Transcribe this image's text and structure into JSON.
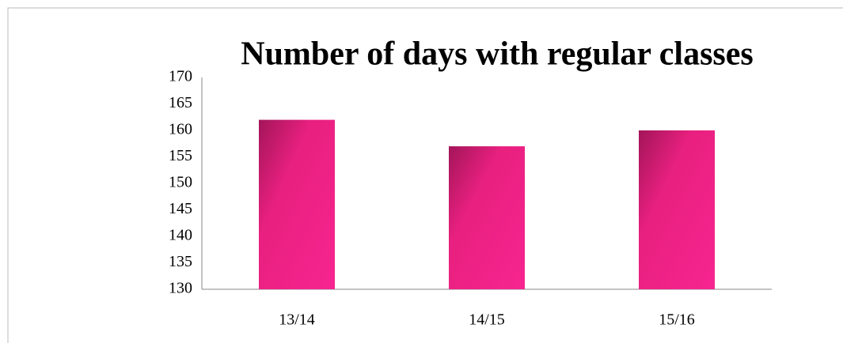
{
  "chart_data": {
    "type": "bar",
    "title": "Number of days with regular classes",
    "categories": [
      "13/14",
      "14/15",
      "15/16"
    ],
    "values": [
      162,
      157,
      160
    ],
    "color": "#f72590",
    "ylim": [
      130,
      170
    ],
    "yticks": [
      130,
      135,
      140,
      145,
      150,
      155,
      160,
      165,
      170
    ],
    "grid": false
  }
}
